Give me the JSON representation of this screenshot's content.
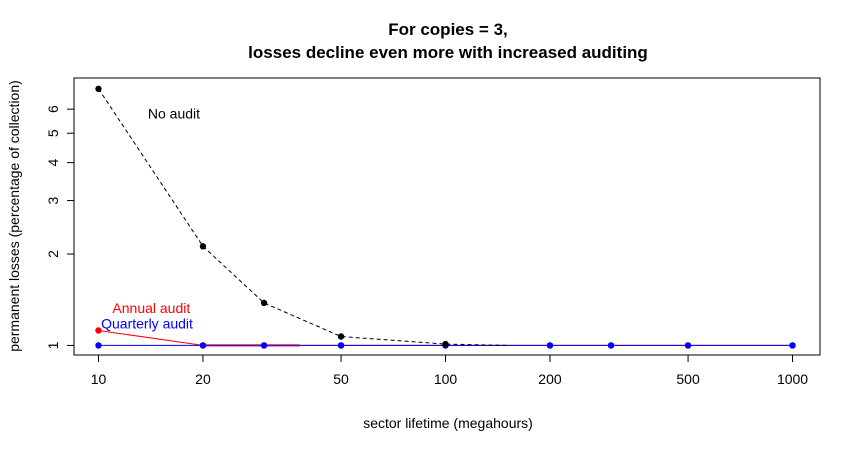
{
  "chart_data": {
    "type": "line",
    "title_line1": "For copies = 3,",
    "title_line2": "losses decline even more with increased auditing",
    "xlabel": "sector lifetime (megahours)",
    "ylabel": "permanent losses (percentage of collection)",
    "x_scale": "log",
    "y_scale": "log",
    "xlim": [
      8.5,
      1200
    ],
    "ylim": [
      0.93,
      7.6
    ],
    "grid": false,
    "x_ticks": [
      10,
      20,
      50,
      100,
      200,
      500,
      1000
    ],
    "x_tick_labels": [
      "10",
      "20",
      "50",
      "100",
      "200",
      "500",
      "1000"
    ],
    "y_ticks": [
      1,
      2,
      3,
      4,
      5,
      6
    ],
    "y_tick_labels": [
      "1",
      "2",
      "3",
      "4",
      "5",
      "6"
    ],
    "series": [
      {
        "name": "No audit",
        "color": "#000000",
        "line_style": "dashed",
        "x": [
          10,
          20,
          30,
          50,
          100,
          150
        ],
        "y": [
          7.0,
          2.12,
          1.38,
          1.07,
          1.01,
          1.0
        ]
      },
      {
        "name": "Annual audit",
        "color": "#ff0000",
        "line_style": "solid",
        "x": [
          10,
          20,
          30,
          50,
          100,
          200,
          300,
          500,
          1000
        ],
        "y": [
          1.12,
          1.0,
          1.0,
          1.0,
          1.0,
          1.0,
          1.0,
          1.0,
          1.0
        ]
      },
      {
        "name": "Quarterly audit",
        "color": "#0000ff",
        "line_style": "solid",
        "x": [
          10,
          20,
          30,
          50,
          100,
          200,
          300,
          500,
          1000
        ],
        "y": [
          1.0,
          1.0,
          1.0,
          1.0,
          1.0,
          1.0,
          1.0,
          1.0,
          1.0
        ]
      }
    ],
    "purple_segments": [
      {
        "color": "#800080",
        "x": [
          20,
          38
        ],
        "y": [
          1.0,
          1.0
        ]
      }
    ],
    "annotations": [
      {
        "text": "No audit",
        "color": "#000000",
        "x": 16.5,
        "y": 5.8
      },
      {
        "text": "Annual audit",
        "color": "#ff0000",
        "x": 14.2,
        "y": 1.33
      },
      {
        "text": "Quarterly audit",
        "color": "#0000ff",
        "x": 13.8,
        "y": 1.18
      }
    ]
  }
}
